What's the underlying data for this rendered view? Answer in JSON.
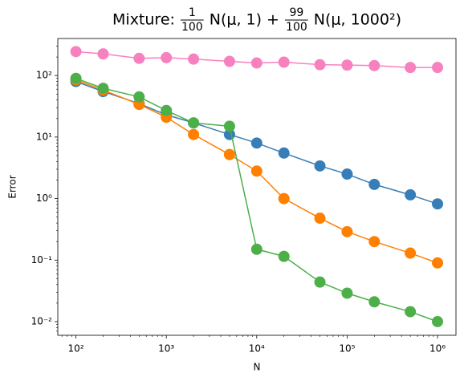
{
  "chart_data": {
    "type": "line",
    "title": [
      "Mixture: ",
      {
        "num": "1",
        "den": "100"
      },
      " N(μ, 1) + ",
      {
        "num": "99",
        "den": "100"
      },
      " N(μ, 1000²)"
    ],
    "xlabel": "N",
    "ylabel": "Error",
    "x": [
      100,
      200,
      500,
      1000,
      2000,
      5000,
      10000,
      20000,
      50000,
      100000,
      200000,
      500000,
      1000000
    ],
    "series": [
      {
        "color": "#377eb8",
        "values": [
          80,
          55,
          35,
          23,
          17,
          11,
          8,
          5.5,
          3.4,
          2.5,
          1.7,
          1.15,
          0.82
        ]
      },
      {
        "color": "#ff7f00",
        "values": [
          85,
          58,
          34,
          21,
          11,
          5.2,
          2.8,
          1.0,
          0.48,
          0.29,
          0.2,
          0.13,
          0.09
        ]
      },
      {
        "color": "#4daf4a",
        "values": [
          90,
          62,
          45,
          27,
          17,
          15,
          0.15,
          0.115,
          0.044,
          0.029,
          0.021,
          0.0145,
          0.01
        ]
      },
      {
        "color": "#f781bf",
        "values": [
          245,
          225,
          190,
          195,
          185,
          170,
          160,
          165,
          150,
          148,
          145,
          135,
          135
        ]
      }
    ],
    "xscale": "log",
    "yscale": "log",
    "xlim": [
      63,
      1600000
    ],
    "ylim": [
      0.006,
      400
    ],
    "xticks": [
      {
        "value": 100,
        "label": "10²"
      },
      {
        "value": 1000,
        "label": "10³"
      },
      {
        "value": 10000,
        "label": "10⁴"
      },
      {
        "value": 100000,
        "label": "10⁵"
      },
      {
        "value": 1000000,
        "label": "10⁶"
      }
    ],
    "yticks": [
      {
        "value": 0.01,
        "label": "10⁻²"
      },
      {
        "value": 0.1,
        "label": "10⁻¹"
      },
      {
        "value": 1,
        "label": "10⁰"
      },
      {
        "value": 10,
        "label": "10¹"
      },
      {
        "value": 100,
        "label": "10²"
      }
    ]
  }
}
